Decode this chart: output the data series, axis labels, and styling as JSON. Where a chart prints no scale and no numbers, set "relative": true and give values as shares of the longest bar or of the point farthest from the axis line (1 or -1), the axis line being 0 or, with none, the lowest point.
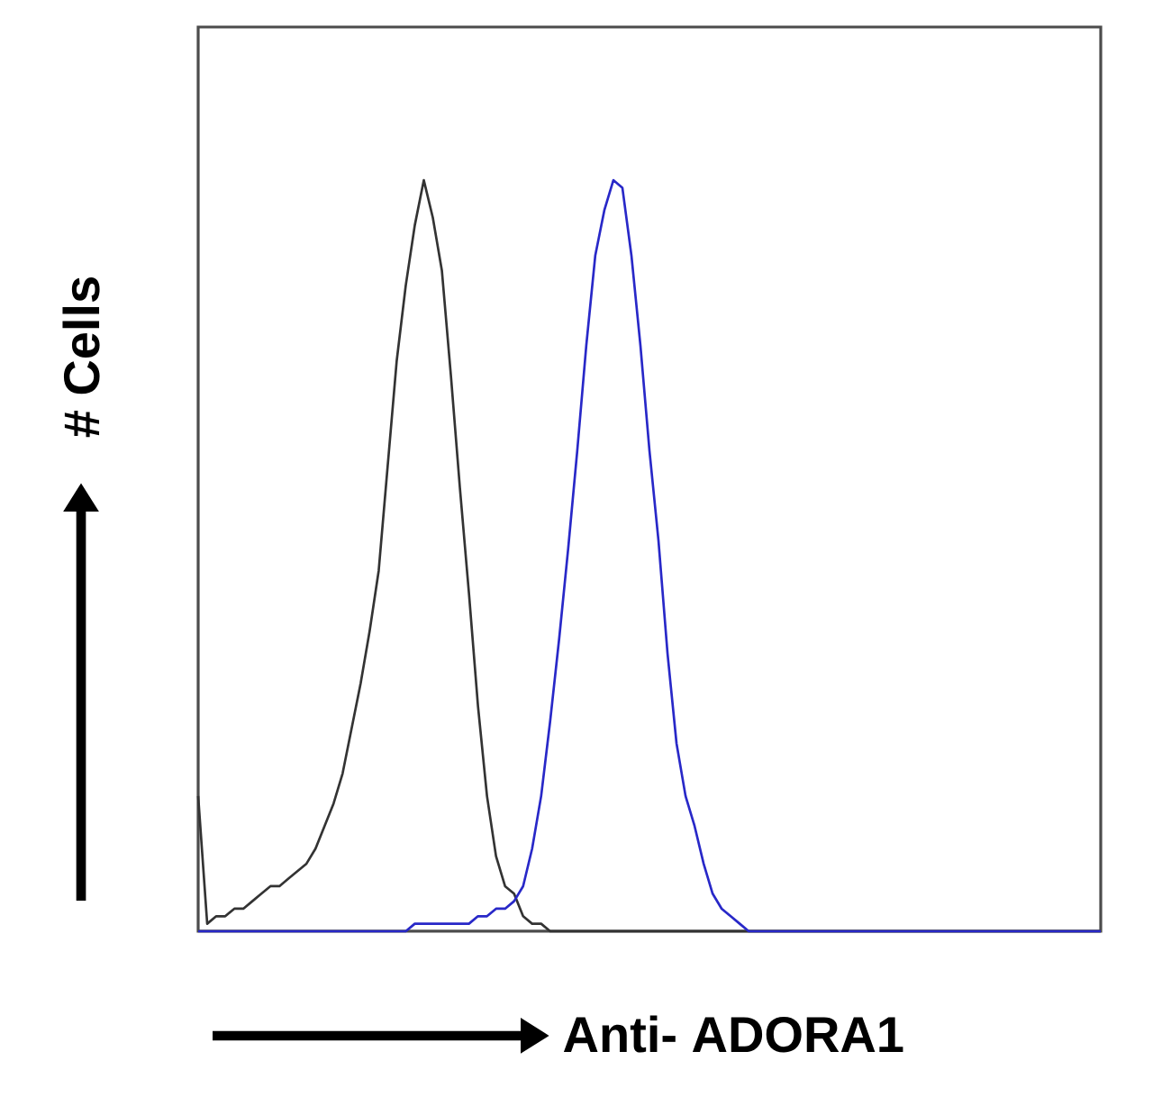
{
  "chart_data": {
    "type": "line",
    "relative": true,
    "xlabel": "Anti- ADORA1",
    "ylabel": "# Cells",
    "categories": [
      null,
      null,
      null,
      null,
      null,
      null,
      null,
      null,
      null,
      null,
      null,
      null,
      null,
      null,
      null,
      null,
      null,
      null,
      null,
      null,
      null,
      null,
      null,
      null,
      null,
      null,
      null,
      null,
      null,
      null,
      null,
      null,
      null,
      null,
      null,
      null,
      null,
      null,
      null,
      null,
      null,
      null,
      null,
      null,
      null,
      null,
      null,
      null,
      null,
      null,
      null,
      null,
      null,
      null,
      null,
      null,
      null,
      null,
      null,
      null,
      null,
      null,
      null,
      null,
      null,
      null,
      null,
      null,
      null,
      null,
      null,
      null,
      null,
      null,
      null,
      null,
      null,
      null,
      null,
      null,
      null,
      null,
      null,
      null,
      null,
      null,
      null,
      null,
      null,
      null,
      null,
      null,
      null,
      null,
      null,
      null,
      null,
      null,
      null,
      null,
      null
    ],
    "series": [
      {
        "color": "#333333",
        "values": [
          0.18,
          0.01,
          0.02,
          0.02,
          0.03,
          0.03,
          0.04,
          0.05,
          0.06,
          0.06,
          0.07,
          0.08,
          0.09,
          0.11,
          0.14,
          0.17,
          0.21,
          0.27,
          0.33,
          0.4,
          0.48,
          0.62,
          0.76,
          0.86,
          0.94,
          1.0,
          0.95,
          0.88,
          0.74,
          0.59,
          0.45,
          0.3,
          0.18,
          0.1,
          0.06,
          0.05,
          0.02,
          0.01,
          0.01,
          0,
          0,
          0,
          0,
          0,
          0,
          0,
          0,
          0,
          0,
          0,
          0,
          0,
          0,
          0,
          0,
          0,
          0,
          0,
          0,
          0,
          0,
          0,
          0,
          0,
          0,
          0,
          0,
          0,
          0,
          0,
          0,
          0,
          0,
          0,
          0,
          0,
          0,
          0,
          0,
          0,
          0,
          0,
          0,
          0,
          0,
          0,
          0,
          0,
          0,
          0,
          0,
          0,
          0,
          0,
          0,
          0,
          0,
          0,
          0,
          0,
          0
        ]
      },
      {
        "color": "#2828c8",
        "values": [
          0,
          0,
          0,
          0,
          0,
          0,
          0,
          0,
          0,
          0,
          0,
          0,
          0,
          0,
          0,
          0,
          0,
          0,
          0,
          0,
          0,
          0,
          0,
          0,
          0.01,
          0.01,
          0.01,
          0.01,
          0.01,
          0.01,
          0.01,
          0.02,
          0.02,
          0.03,
          0.03,
          0.04,
          0.06,
          0.11,
          0.18,
          0.28,
          0.39,
          0.51,
          0.64,
          0.78,
          0.9,
          0.96,
          1.0,
          0.99,
          0.9,
          0.78,
          0.64,
          0.52,
          0.37,
          0.25,
          0.18,
          0.14,
          0.09,
          0.05,
          0.03,
          0.02,
          0.01,
          0,
          0,
          0,
          0,
          0,
          0,
          0,
          0,
          0,
          0,
          0,
          0,
          0,
          0,
          0,
          0,
          0,
          0,
          0,
          0,
          0,
          0,
          0,
          0,
          0,
          0,
          0,
          0,
          0,
          0,
          0,
          0,
          0,
          0,
          0,
          0,
          0,
          0,
          0,
          0
        ]
      }
    ]
  }
}
